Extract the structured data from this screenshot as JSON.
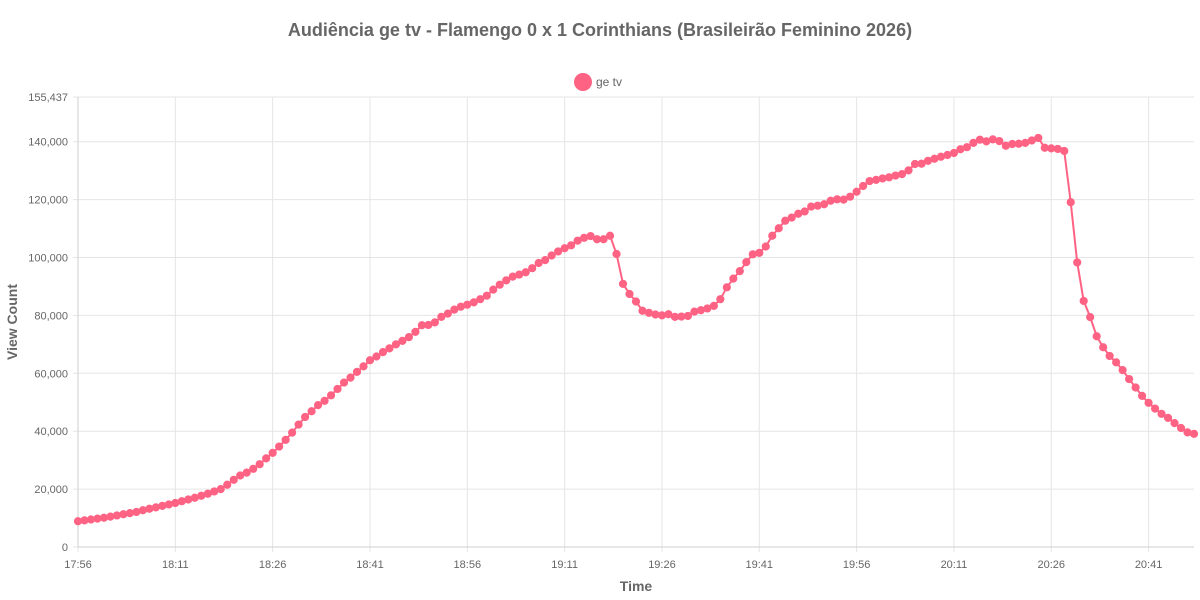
{
  "chart_data": {
    "type": "line",
    "title": "Audiência ge tv - Flamengo 0 x 1 Corinthians (Brasileirão Feminino 2026)",
    "xlabel": "Time",
    "ylabel": "View Count",
    "x_tick_labels": [
      "17:56",
      "18:11",
      "18:26",
      "18:41",
      "18:56",
      "19:11",
      "19:26",
      "19:41",
      "19:56",
      "20:11",
      "20:26",
      "20:41"
    ],
    "x_tick_step": 15,
    "y_tick_labels": [
      "0",
      "20,000",
      "40,000",
      "60,000",
      "80,000",
      "100,000",
      "120,000",
      "140,000",
      "155,437"
    ],
    "y_ticks": [
      0,
      20000,
      40000,
      60000,
      80000,
      100000,
      120000,
      140000,
      155437
    ],
    "ylim": [
      0,
      155437
    ],
    "grid": true,
    "legend_position": "top-center",
    "series": [
      {
        "name": "ge tv",
        "color": "#ff6384",
        "values": [
          8900,
          9200,
          9500,
          9800,
          10100,
          10500,
          10900,
          11300,
          11700,
          12100,
          12700,
          13200,
          13700,
          14200,
          14700,
          15200,
          15800,
          16400,
          17000,
          17700,
          18400,
          19200,
          20000,
          21500,
          23200,
          24700,
          25700,
          27000,
          28600,
          30600,
          32500,
          34700,
          37000,
          39500,
          42300,
          44900,
          46900,
          49000,
          50500,
          52400,
          54600,
          56800,
          58500,
          60500,
          62400,
          64500,
          65800,
          67300,
          68600,
          70000,
          71200,
          72500,
          74300,
          76600,
          76700,
          77600,
          79500,
          80600,
          82000,
          83000,
          83700,
          84500,
          85600,
          86800,
          88900,
          90600,
          92100,
          93400,
          94100,
          94900,
          96300,
          98100,
          99100,
          100700,
          102100,
          103200,
          104200,
          105800,
          106800,
          107400,
          106300,
          106300,
          107500,
          101200,
          90900,
          87400,
          84800,
          81600,
          80900,
          80300,
          80000,
          80400,
          79500,
          79600,
          79800,
          81300,
          81800,
          82400,
          83300,
          85600,
          89700,
          92700,
          95300,
          98400,
          101100,
          101600,
          103800,
          107500,
          110100,
          112700,
          113800,
          115100,
          115900,
          117600,
          117900,
          118400,
          119600,
          120100,
          120000,
          121000,
          122700,
          124700,
          126400,
          126800,
          127300,
          127700,
          128300,
          128800,
          130100,
          132300,
          132400,
          133400,
          134100,
          134800,
          135400,
          136100,
          137400,
          138100,
          139600,
          140700,
          140100,
          140800,
          140200,
          138600,
          139200,
          139300,
          139600,
          140400,
          141300,
          137900,
          137700,
          137500,
          136800,
          119100,
          98300,
          85000,
          79400,
          72800,
          69000,
          66000,
          63800,
          61100,
          58000,
          55100,
          52200,
          49800,
          47800,
          46000,
          44600,
          42800,
          41100,
          39600,
          39100
        ]
      }
    ]
  }
}
